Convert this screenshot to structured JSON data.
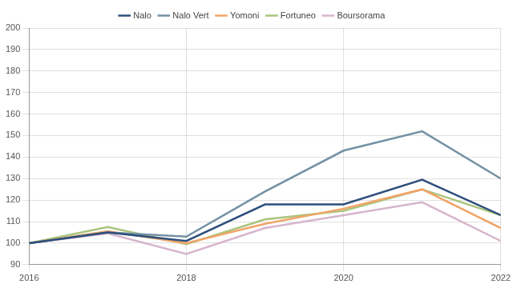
{
  "chart_data": {
    "type": "line",
    "x": [
      2016,
      2017,
      2018,
      2019,
      2020,
      2021,
      2022
    ],
    "series": [
      {
        "name": "Nalo",
        "color": "#2d4f7c",
        "values": [
          100,
          105,
          101,
          118,
          118,
          129.5,
          113
        ]
      },
      {
        "name": "Nalo Vert",
        "color": "#7391a3",
        "values": [
          100,
          105,
          103,
          124,
          143,
          152,
          130
        ]
      },
      {
        "name": "Yomoni",
        "color": "#f2a467",
        "values": [
          100,
          105.5,
          100,
          109,
          116,
          125,
          107
        ]
      },
      {
        "name": "Fortuneo",
        "color": "#a9c47c",
        "values": [
          100,
          107.5,
          99.5,
          111,
          115,
          125,
          113
        ]
      },
      {
        "name": "Boursorama",
        "color": "#d6b5cd",
        "values": [
          100,
          104.5,
          95,
          107,
          113,
          119,
          101
        ]
      }
    ],
    "xlim": [
      2016,
      2022
    ],
    "xticks": [
      2016,
      2018,
      2020,
      2022
    ],
    "ylim": [
      90,
      200
    ],
    "yticks": [
      90,
      100,
      110,
      120,
      130,
      140,
      150,
      160,
      170,
      180,
      190,
      200
    ],
    "grid": true,
    "legend": "top"
  }
}
